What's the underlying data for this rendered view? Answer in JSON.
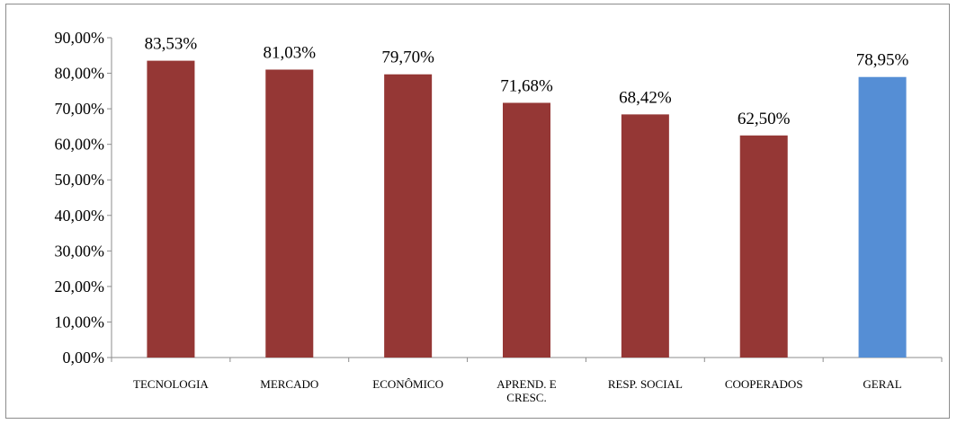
{
  "chart_data": {
    "type": "bar",
    "categories": [
      "TECNOLOGIA",
      "MERCADO",
      "ECONÔMICO",
      "APREND. E CRESC.",
      "RESP. SOCIAL",
      "COOPERADOS",
      "GERAL"
    ],
    "category_lines": [
      [
        "TECNOLOGIA"
      ],
      [
        "MERCADO"
      ],
      [
        "ECONÔMICO"
      ],
      [
        "APREND. E",
        "CRESC."
      ],
      [
        "RESP. SOCIAL"
      ],
      [
        "COOPERADOS"
      ],
      [
        "GERAL"
      ]
    ],
    "values": [
      83.53,
      81.03,
      79.7,
      71.68,
      68.42,
      62.5,
      78.95
    ],
    "data_labels": [
      "83,53%",
      "81,03%",
      "79,70%",
      "71,68%",
      "68,42%",
      "62,50%",
      "78,95%"
    ],
    "bar_colors": [
      "#953735",
      "#953735",
      "#953735",
      "#953735",
      "#953735",
      "#953735",
      "#558ED5"
    ],
    "y_ticks": [
      "0,00%",
      "10,00%",
      "20,00%",
      "30,00%",
      "40,00%",
      "50,00%",
      "60,00%",
      "70,00%",
      "80,00%",
      "90,00%"
    ],
    "ylim": [
      0,
      90
    ],
    "title": "",
    "xlabel": "",
    "ylabel": "",
    "grid": false,
    "legend": "none"
  }
}
